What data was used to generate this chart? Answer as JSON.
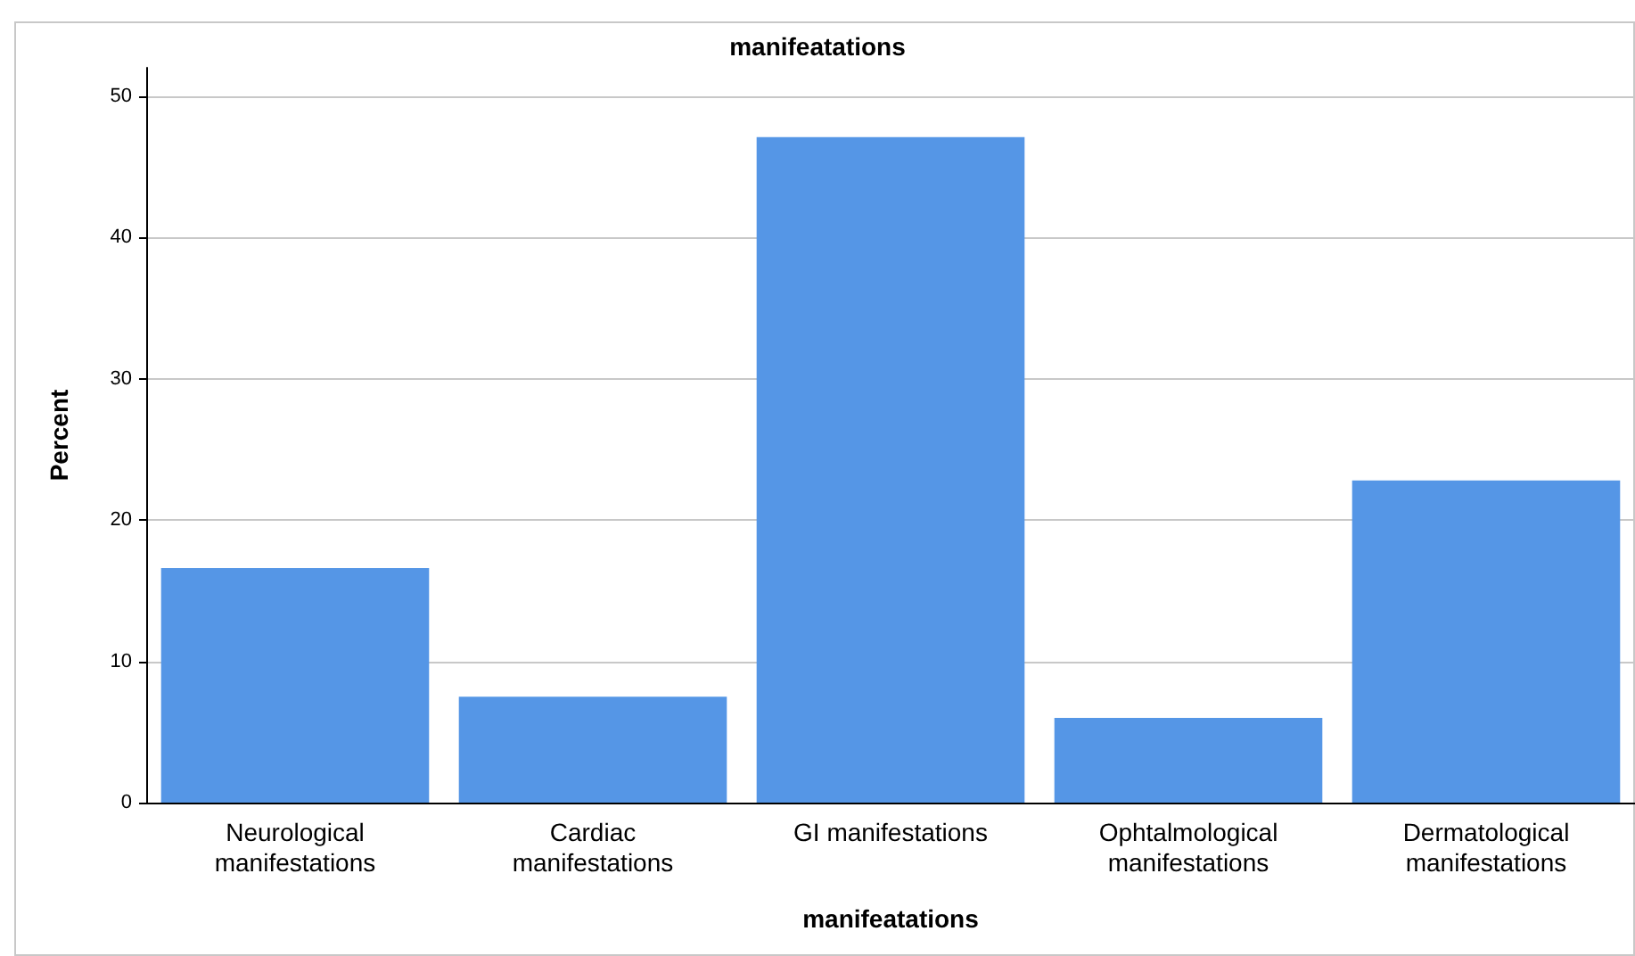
{
  "chart_data": {
    "type": "bar",
    "title": "manifeatations",
    "xlabel": "manifeatations",
    "ylabel": "Percent",
    "categories": [
      "Neurological\nmanifestations",
      "Cardiac\nmanifestations",
      "GI manifestations",
      "Ophtalmological\nmanifestations",
      "Dermatological\nmanifestations"
    ],
    "values": [
      16.6,
      7.5,
      47.1,
      6.0,
      22.8
    ],
    "color": "#5596e6",
    "ylim": [
      0,
      52
    ],
    "yticks": [
      0,
      10,
      20,
      30,
      40,
      50
    ],
    "grid": "y"
  }
}
